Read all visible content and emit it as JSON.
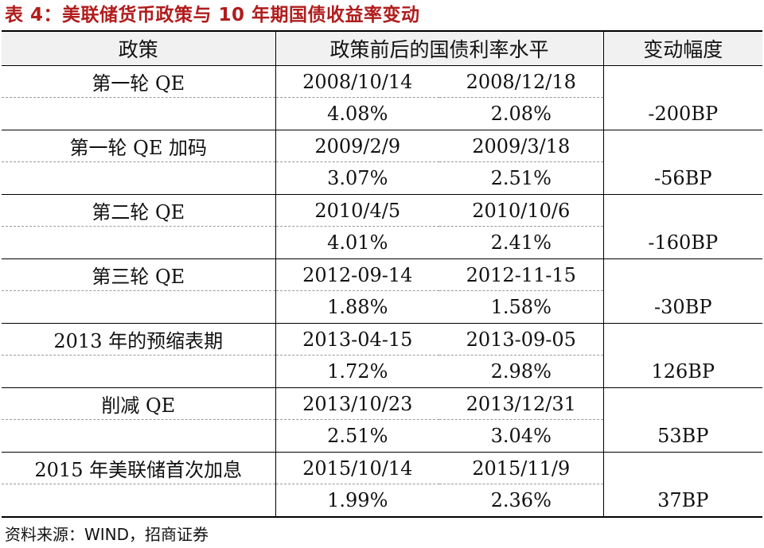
{
  "title": "表 4：美联储货币政策与 10 年期国债收益率变动",
  "headers": {
    "policy": "政策",
    "levels": "政策前后的国债利率水平",
    "change": "变动幅度"
  },
  "rows": [
    {
      "policy": "第一轮 QE",
      "date_before": "2008/10/14",
      "date_after": "2008/12/18",
      "yield_before": "4.08%",
      "yield_after": "2.08%",
      "change": "-200BP"
    },
    {
      "policy": "第一轮 QE 加码",
      "date_before": "2009/2/9",
      "date_after": "2009/3/18",
      "yield_before": "3.07%",
      "yield_after": "2.51%",
      "change": "-56BP"
    },
    {
      "policy": "第二轮 QE",
      "date_before": "2010/4/5",
      "date_after": "2010/10/6",
      "yield_before": "4.01%",
      "yield_after": "2.41%",
      "change": "-160BP"
    },
    {
      "policy": "第三轮 QE",
      "date_before": "2012-09-14",
      "date_after": "2012-11-15",
      "yield_before": "1.88%",
      "yield_after": "1.58%",
      "change": "-30BP"
    },
    {
      "policy": "2013 年的预缩表期",
      "date_before": "2013-04-15",
      "date_after": "2013-09-05",
      "yield_before": "1.72%",
      "yield_after": "2.98%",
      "change": "126BP"
    },
    {
      "policy": "削减 QE",
      "date_before": "2013/10/23",
      "date_after": "2013/12/31",
      "yield_before": "2.51%",
      "yield_after": "3.04%",
      "change": "53BP"
    },
    {
      "policy": "2015 年美联储首次加息",
      "date_before": "2015/10/14",
      "date_after": "2015/11/9",
      "yield_before": "1.99%",
      "yield_after": "2.36%",
      "change": "37BP"
    }
  ],
  "source": "资料来源：WIND，招商证券",
  "colors": {
    "title": "#b01c1c",
    "header_bg": "#f1f1f1"
  }
}
